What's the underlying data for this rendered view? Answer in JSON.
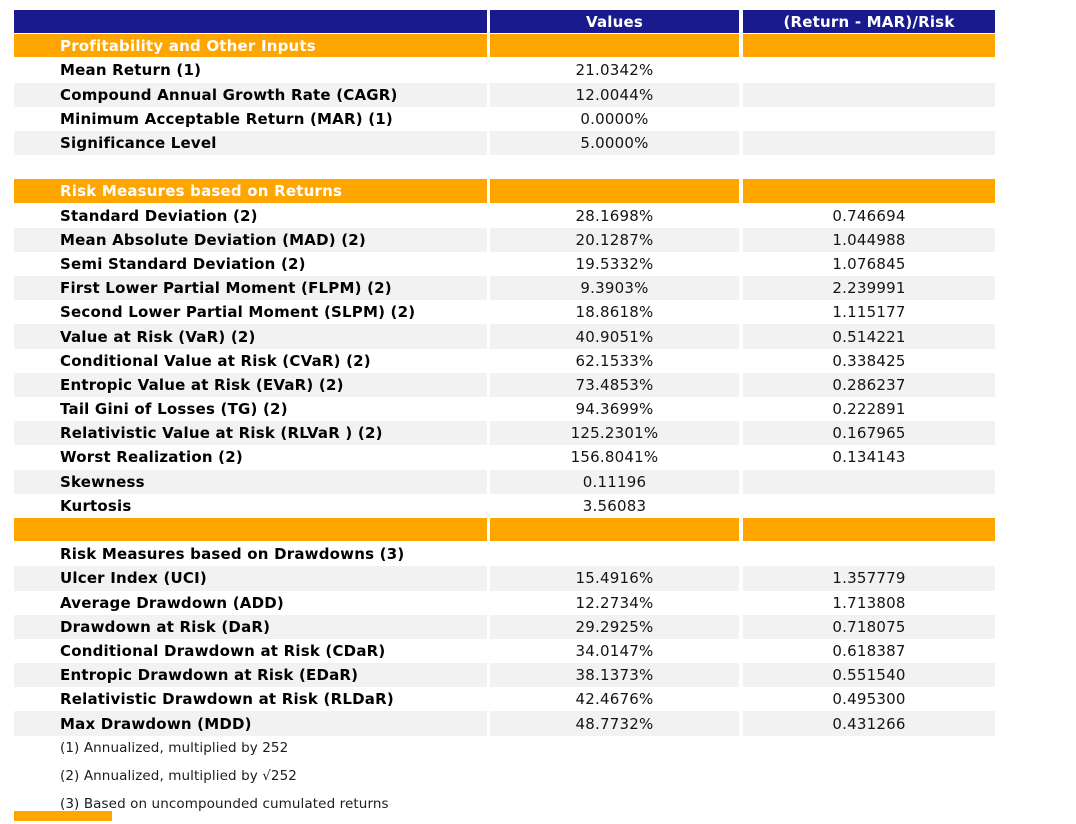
{
  "report": {
    "colors": {
      "header_bg": "#1A1A8F",
      "section_bg": "#FFA500",
      "row_alt_bg": "#F2F2F2"
    },
    "columns": {
      "values": "Values",
      "risk": "(Return - MAR)/Risk"
    },
    "rows": [
      {
        "kind": "head",
        "shade": false,
        "label": "",
        "value": "Values",
        "ratio": "(Return - MAR)/Risk"
      },
      {
        "kind": "section",
        "shade": false,
        "label": "Profitability and Other Inputs",
        "value": "",
        "ratio": ""
      },
      {
        "kind": "data",
        "shade": false,
        "label": "Mean Return (1)",
        "value": "21.0342%",
        "ratio": ""
      },
      {
        "kind": "data",
        "shade": true,
        "label": "Compound Annual Growth Rate (CAGR)",
        "value": "12.0044%",
        "ratio": ""
      },
      {
        "kind": "data",
        "shade": false,
        "label": "Minimum Acceptable Return (MAR) (1)",
        "value": "0.0000%",
        "ratio": ""
      },
      {
        "kind": "data",
        "shade": true,
        "label": "Significance Level",
        "value": "5.0000%",
        "ratio": ""
      },
      {
        "kind": "spacer",
        "shade": false,
        "label": "",
        "value": "",
        "ratio": ""
      },
      {
        "kind": "section",
        "shade": false,
        "label": "Risk Measures based on Returns",
        "value": "",
        "ratio": ""
      },
      {
        "kind": "data",
        "shade": false,
        "label": "Standard Deviation (2)",
        "value": "28.1698%",
        "ratio": "0.746694"
      },
      {
        "kind": "data",
        "shade": true,
        "label": "Mean Absolute Deviation (MAD) (2)",
        "value": "20.1287%",
        "ratio": "1.044988"
      },
      {
        "kind": "data",
        "shade": false,
        "label": "Semi Standard Deviation (2)",
        "value": "19.5332%",
        "ratio": "1.076845"
      },
      {
        "kind": "data",
        "shade": true,
        "label": "First Lower Partial Moment (FLPM) (2)",
        "value": "9.3903%",
        "ratio": "2.239991"
      },
      {
        "kind": "data",
        "shade": false,
        "label": "Second Lower Partial Moment (SLPM) (2)",
        "value": "18.8618%",
        "ratio": "1.115177"
      },
      {
        "kind": "data",
        "shade": true,
        "label": "Value at Risk (VaR) (2)",
        "value": "40.9051%",
        "ratio": "0.514221"
      },
      {
        "kind": "data",
        "shade": false,
        "label": "Conditional Value at Risk (CVaR) (2)",
        "value": "62.1533%",
        "ratio": "0.338425"
      },
      {
        "kind": "data",
        "shade": true,
        "label": "Entropic Value at Risk (EVaR) (2)",
        "value": "73.4853%",
        "ratio": "0.286237"
      },
      {
        "kind": "data",
        "shade": false,
        "label": "Tail Gini of Losses (TG) (2)",
        "value": "94.3699%",
        "ratio": "0.222891"
      },
      {
        "kind": "data",
        "shade": true,
        "label": "Relativistic Value at Risk (RLVaR ) (2)",
        "value": "125.2301%",
        "ratio": "0.167965"
      },
      {
        "kind": "data",
        "shade": false,
        "label": "Worst Realization (2)",
        "value": "156.8041%",
        "ratio": "0.134143"
      },
      {
        "kind": "data",
        "shade": true,
        "label": "Skewness",
        "value": "0.11196",
        "ratio": ""
      },
      {
        "kind": "data",
        "shade": false,
        "label": "Kurtosis",
        "value": "3.56083",
        "ratio": ""
      },
      {
        "kind": "section-empty",
        "shade": false,
        "label": "",
        "value": "",
        "ratio": ""
      },
      {
        "kind": "subtitle",
        "shade": false,
        "label": "Risk Measures based on Drawdowns (3)",
        "value": "",
        "ratio": ""
      },
      {
        "kind": "data",
        "shade": true,
        "label": "Ulcer Index (UCI)",
        "value": "15.4916%",
        "ratio": "1.357779"
      },
      {
        "kind": "data",
        "shade": false,
        "label": "Average Drawdown (ADD)",
        "value": "12.2734%",
        "ratio": "1.713808"
      },
      {
        "kind": "data",
        "shade": true,
        "label": "Drawdown at Risk (DaR)",
        "value": "29.2925%",
        "ratio": "0.718075"
      },
      {
        "kind": "data",
        "shade": false,
        "label": "Conditional Drawdown at Risk (CDaR)",
        "value": "34.0147%",
        "ratio": "0.618387"
      },
      {
        "kind": "data",
        "shade": true,
        "label": "Entropic Drawdown at Risk (EDaR)",
        "value": "38.1373%",
        "ratio": "0.551540"
      },
      {
        "kind": "data",
        "shade": false,
        "label": "Relativistic Drawdown at Risk (RLDaR)",
        "value": "42.4676%",
        "ratio": "0.495300"
      },
      {
        "kind": "data",
        "shade": true,
        "label": "Max Drawdown (MDD)",
        "value": "48.7732%",
        "ratio": "0.431266"
      }
    ],
    "footnotes": [
      "(1) Annualized, multiplied by 252",
      "(2) Annualized, multiplied by √252",
      "(3) Based on uncompounded cumulated returns"
    ]
  }
}
